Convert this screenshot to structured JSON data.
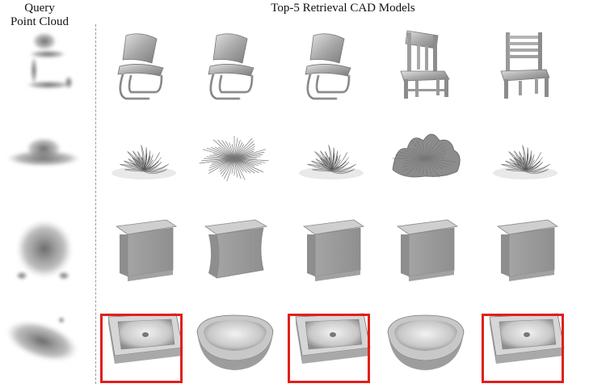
{
  "header": {
    "query_title_line1": "Query",
    "query_title_line2": "Point Cloud",
    "retrieval_title": "Top-5 Retrieval CAD Models"
  },
  "rows": [
    {
      "category": "chair",
      "query": "chair-point-cloud",
      "results": [
        "cantilever-chair",
        "cantilever-chair",
        "cantilever-chair",
        "spindle-back-chair",
        "slat-back-chair"
      ],
      "matched": [
        false,
        false,
        false,
        false,
        false
      ]
    },
    {
      "category": "plant",
      "query": "plant-point-cloud",
      "results": [
        "leafy-plant",
        "spiky-plant",
        "leafy-plant",
        "bushy-plant",
        "leafy-plant"
      ],
      "matched": [
        false,
        false,
        false,
        false,
        false
      ]
    },
    {
      "category": "dresser",
      "query": "dresser-point-cloud",
      "results": [
        "dresser",
        "curved-dresser",
        "dresser",
        "dresser",
        "dresser"
      ],
      "matched": [
        false,
        false,
        false,
        false,
        false
      ]
    },
    {
      "category": "sink",
      "query": "sink-point-cloud",
      "results": [
        "sink",
        "bathtub",
        "sink",
        "bathtub",
        "sink"
      ],
      "matched": [
        true,
        false,
        true,
        false,
        true
      ]
    }
  ],
  "colors": {
    "match_box": "#e0201c",
    "model_gray": "#9e9e9e",
    "separator": "#9a9a9a"
  }
}
